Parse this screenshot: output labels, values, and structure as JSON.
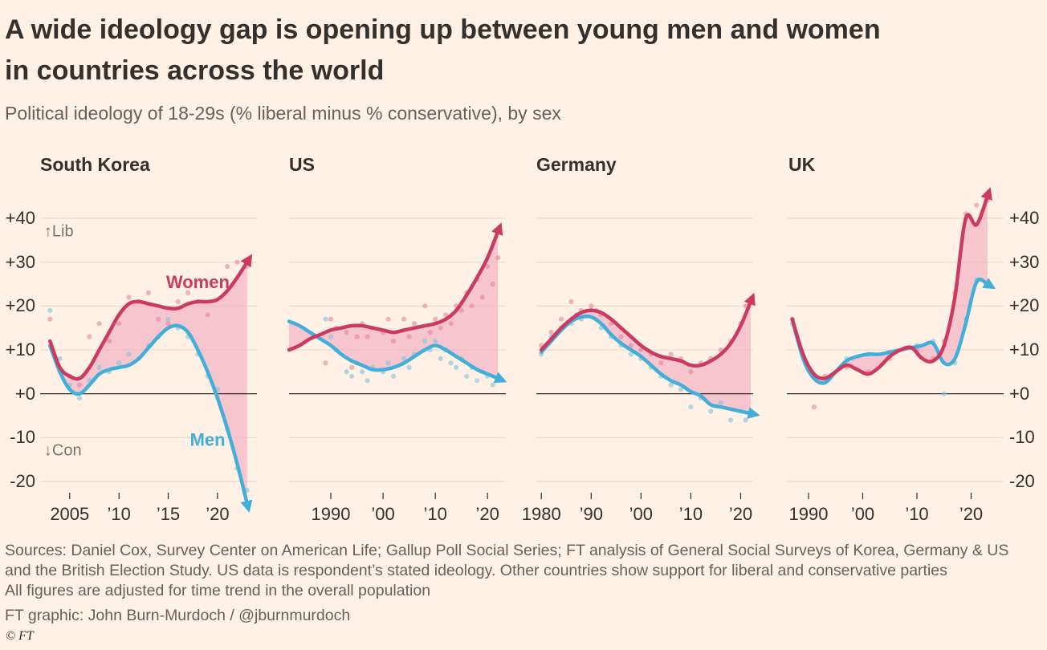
{
  "header": {
    "title_line1": "A wide ideology gap is opening up between young men and women",
    "title_line2": "in countries across the world",
    "subtitle": "Political ideology of 18-29s (% liberal minus % conservative), by sex"
  },
  "footer": {
    "sources_line1": "Sources: Daniel Cox, Survey Center on American Life; Gallup Poll Social Series; FT analysis of General Social Surveys of Korea, Germany & US",
    "sources_line2": "and the British Election Study. US data is respondent’s stated ideology. Other countries show support for liberal and conservative parties",
    "note": "All figures are adjusted for time trend in the overall population",
    "credit": "FT graphic: John Burn-Murdoch / @jburnmurdoch",
    "copyright": "© FT"
  },
  "colors": {
    "background": "#fff1e5",
    "ink": "#33302e",
    "muted": "#66605c",
    "annotation": "#7a746c",
    "grid": "#e6d8c7",
    "zero": "#1f1d1b",
    "women": "#cb3a60",
    "women_dot": "#de7f95",
    "men": "#43aed8",
    "men_dot": "#7ec4de",
    "gap_fill": "#f2a9bd"
  },
  "chart_data": {
    "type": "line",
    "title": "A wide ideology gap is opening up between young men and women in countries across the world",
    "subtitle": "Political ideology of 18-29s (% liberal minus % conservative), by sex",
    "unit": "% liberal minus % conservative",
    "y_axis": {
      "ticks": [
        40,
        30,
        20,
        10,
        0,
        -10,
        -20
      ],
      "labels": [
        "+40",
        "+30",
        "+20",
        "+10",
        "+0",
        "-10",
        "-20"
      ],
      "range": [
        -27,
        48
      ]
    },
    "series": [
      {
        "name": "Women",
        "color_key": "women"
      },
      {
        "name": "Men",
        "color_key": "men"
      }
    ],
    "panels": [
      {
        "title": "South Korea",
        "x_domain": [
          2002,
          2024
        ],
        "x_ticks": [
          2005,
          2010,
          2015,
          2020
        ],
        "x_tick_labels": [
          "2005",
          "’10",
          "’15",
          "’20"
        ],
        "years": [
          2003,
          2004,
          2005,
          2006,
          2007,
          2008,
          2009,
          2010,
          2011,
          2012,
          2013,
          2014,
          2015,
          2016,
          2017,
          2018,
          2019,
          2020,
          2021,
          2022,
          2023
        ],
        "women": [
          12,
          6,
          4,
          3.5,
          6,
          10,
          14,
          18,
          20.5,
          21,
          20.5,
          20,
          19.5,
          19.5,
          20.5,
          21,
          21,
          21.5,
          23.5,
          26.5,
          30
        ],
        "men": [
          11,
          5,
          1,
          0,
          2,
          4.5,
          5.5,
          6,
          6.5,
          8,
          10.5,
          13,
          15,
          15.5,
          14,
          10,
          5,
          -1,
          -8,
          -16,
          -25
        ],
        "dots_women": [
          [
            2003,
            17
          ],
          [
            2004,
            5
          ],
          [
            2005,
            4
          ],
          [
            2006,
            2
          ],
          [
            2007,
            13
          ],
          [
            2008,
            16
          ],
          [
            2009,
            12
          ],
          [
            2010,
            16
          ],
          [
            2011,
            22
          ],
          [
            2012,
            21
          ],
          [
            2013,
            23
          ],
          [
            2014,
            17
          ],
          [
            2015,
            16
          ],
          [
            2016,
            21
          ],
          [
            2017,
            23
          ],
          [
            2018,
            21
          ],
          [
            2019,
            18
          ],
          [
            2021,
            29
          ],
          [
            2022,
            30
          ],
          [
            2023,
            29
          ]
        ],
        "dots_men": [
          [
            2003,
            19
          ],
          [
            2004,
            8
          ],
          [
            2005,
            2
          ],
          [
            2006,
            -1
          ],
          [
            2007,
            3
          ],
          [
            2008,
            6
          ],
          [
            2009,
            5
          ],
          [
            2010,
            7
          ],
          [
            2011,
            9
          ],
          [
            2012,
            8
          ],
          [
            2013,
            11
          ],
          [
            2014,
            13
          ],
          [
            2015,
            17
          ],
          [
            2016,
            15
          ],
          [
            2017,
            13
          ],
          [
            2018,
            9
          ],
          [
            2019,
            4
          ],
          [
            2020,
            1
          ],
          [
            2021,
            -8
          ],
          [
            2022,
            -17
          ],
          [
            2023,
            -22
          ]
        ],
        "annotations": [
          {
            "text": "Women",
            "color_key": "women",
            "x": 2018,
            "y": 25.5,
            "anchor": "middle",
            "bold": true,
            "size": 22
          },
          {
            "text": "Men",
            "color_key": "men",
            "x": 2019,
            "y": -10.5,
            "anchor": "middle",
            "bold": true,
            "size": 22
          },
          {
            "text": "↑Lib",
            "color_key": "annotation",
            "x": 2002.4,
            "y": 37,
            "anchor": "start",
            "bold": false,
            "size": 20
          },
          {
            "text": "↓Con",
            "color_key": "annotation",
            "x": 2002.4,
            "y": -13,
            "anchor": "start",
            "bold": false,
            "size": 20
          }
        ]
      },
      {
        "title": "US",
        "x_domain": [
          1982,
          2023.5
        ],
        "x_ticks": [
          1990,
          2000,
          2010,
          2020
        ],
        "x_tick_labels": [
          "1990",
          "’00",
          "’10",
          "’20"
        ],
        "years": [
          1982,
          1984,
          1986,
          1988,
          1990,
          1992,
          1994,
          1996,
          1998,
          2000,
          2002,
          2004,
          2006,
          2008,
          2010,
          2012,
          2014,
          2016,
          2018,
          2020,
          2022
        ],
        "women": [
          10,
          11,
          12.5,
          13.5,
          14.5,
          15,
          15.5,
          15.5,
          15,
          14.5,
          14,
          14.5,
          15,
          15.5,
          16,
          17,
          19,
          22.5,
          26.5,
          31,
          37
        ],
        "men": [
          16.5,
          15.5,
          14,
          12.5,
          11,
          9,
          7.5,
          6.5,
          5.5,
          5.5,
          6,
          7,
          8.5,
          10,
          11,
          10,
          8.5,
          7,
          5.5,
          4.5,
          3.5
        ],
        "dots_women": [
          [
            1989,
            7
          ],
          [
            1990,
            17
          ],
          [
            1991,
            15
          ],
          [
            1993,
            14
          ],
          [
            1994,
            6
          ],
          [
            1995,
            13
          ],
          [
            1996,
            16
          ],
          [
            1997,
            13
          ],
          [
            1998,
            15
          ],
          [
            2000,
            14
          ],
          [
            2001,
            17
          ],
          [
            2002,
            12
          ],
          [
            2004,
            17
          ],
          [
            2005,
            13
          ],
          [
            2006,
            16
          ],
          [
            2008,
            20
          ],
          [
            2009,
            14
          ],
          [
            2010,
            17
          ],
          [
            2011,
            15
          ],
          [
            2012,
            18
          ],
          [
            2013,
            16
          ],
          [
            2014,
            20
          ],
          [
            2015,
            19
          ],
          [
            2016,
            23
          ],
          [
            2017,
            20
          ],
          [
            2018,
            26
          ],
          [
            2019,
            22
          ],
          [
            2020,
            29
          ],
          [
            2021,
            25
          ],
          [
            2022,
            31
          ]
        ],
        "dots_men": [
          [
            1989,
            17
          ],
          [
            1990,
            13
          ],
          [
            1991,
            10
          ],
          [
            1993,
            5
          ],
          [
            1994,
            4
          ],
          [
            1995,
            7
          ],
          [
            1996,
            5
          ],
          [
            1997,
            3
          ],
          [
            1998,
            6
          ],
          [
            2000,
            5
          ],
          [
            2001,
            7
          ],
          [
            2002,
            4
          ],
          [
            2004,
            8
          ],
          [
            2005,
            6
          ],
          [
            2006,
            9
          ],
          [
            2008,
            12
          ],
          [
            2009,
            10
          ],
          [
            2010,
            12
          ],
          [
            2011,
            8
          ],
          [
            2012,
            10
          ],
          [
            2013,
            7
          ],
          [
            2014,
            6
          ],
          [
            2015,
            8
          ],
          [
            2016,
            4
          ],
          [
            2017,
            6
          ],
          [
            2018,
            3
          ],
          [
            2019,
            5
          ],
          [
            2020,
            4
          ],
          [
            2021,
            2
          ],
          [
            2022,
            4
          ]
        ],
        "annotations": []
      },
      {
        "title": "Germany",
        "x_domain": [
          1979,
          2022.5
        ],
        "x_ticks": [
          1980,
          1990,
          2000,
          2010,
          2020
        ],
        "x_tick_labels": [
          "1980",
          "’90",
          "’00",
          "’10",
          "’20"
        ],
        "years": [
          1980,
          1982,
          1984,
          1986,
          1988,
          1990,
          1992,
          1994,
          1996,
          1998,
          2000,
          2002,
          2004,
          2006,
          2008,
          2010,
          2012,
          2014,
          2016,
          2018,
          2020,
          2022
        ],
        "women": [
          10,
          12.5,
          15,
          17,
          18.5,
          19,
          18.5,
          17,
          15,
          13,
          11,
          9.5,
          8.5,
          8,
          7.5,
          6.5,
          6.5,
          7.5,
          9,
          11.5,
          15.5,
          21
        ],
        "men": [
          9.5,
          12,
          14.5,
          16.5,
          17.5,
          17.5,
          16,
          13.5,
          11.5,
          10,
          8.5,
          6.5,
          4.5,
          3,
          2,
          0.5,
          -0.5,
          -2.5,
          -3,
          -3.5,
          -4,
          -4.5
        ],
        "dots_women": [
          [
            1980,
            11
          ],
          [
            1982,
            14
          ],
          [
            1984,
            17
          ],
          [
            1986,
            21
          ],
          [
            1987,
            18
          ],
          [
            1988,
            19
          ],
          [
            1990,
            20
          ],
          [
            1991,
            19
          ],
          [
            1992,
            18
          ],
          [
            1994,
            16
          ],
          [
            1996,
            13
          ],
          [
            1998,
            11
          ],
          [
            2000,
            10
          ],
          [
            2002,
            9
          ],
          [
            2004,
            7
          ],
          [
            2006,
            9
          ],
          [
            2008,
            8
          ],
          [
            2010,
            5
          ],
          [
            2012,
            7
          ],
          [
            2014,
            8
          ],
          [
            2016,
            10
          ],
          [
            2018,
            12
          ],
          [
            2020,
            16
          ],
          [
            2021,
            20
          ]
        ],
        "dots_men": [
          [
            1980,
            9
          ],
          [
            1982,
            13
          ],
          [
            1984,
            15
          ],
          [
            1986,
            16
          ],
          [
            1988,
            17
          ],
          [
            1990,
            19
          ],
          [
            1992,
            15
          ],
          [
            1994,
            13
          ],
          [
            1996,
            11
          ],
          [
            1998,
            9
          ],
          [
            2000,
            8
          ],
          [
            2002,
            6
          ],
          [
            2004,
            4
          ],
          [
            2006,
            2
          ],
          [
            2008,
            1
          ],
          [
            2010,
            -3
          ],
          [
            2012,
            -1
          ],
          [
            2014,
            -4
          ],
          [
            2016,
            -2
          ],
          [
            2018,
            -6
          ],
          [
            2020,
            -4
          ],
          [
            2021,
            -6
          ]
        ],
        "annotations": []
      },
      {
        "title": "UK",
        "x_domain": [
          1986,
          2026
        ],
        "x_ticks": [
          1990,
          2000,
          2010,
          2020
        ],
        "x_tick_labels": [
          "1990",
          "’00",
          "’10",
          "’20"
        ],
        "years": [
          1987,
          1989,
          1991,
          1993,
          1995,
          1997,
          1999,
          2001,
          2003,
          2005,
          2007,
          2009,
          2011,
          2013,
          2015,
          2017,
          2019,
          2021,
          2023
        ],
        "women": [
          17,
          9,
          4.5,
          3.5,
          5,
          6.5,
          5.5,
          4.5,
          6,
          8.5,
          10,
          10.5,
          8,
          7.5,
          11,
          22,
          40,
          38.5,
          45
        ],
        "men": [
          17,
          8,
          3.5,
          2.5,
          5,
          7.5,
          8.5,
          9,
          9,
          9.5,
          10,
          10.5,
          11,
          11.5,
          7,
          8,
          16,
          25.5,
          25
        ],
        "dots_women": [
          [
            1987,
            17
          ],
          [
            1991,
            -3
          ],
          [
            1993,
            4
          ],
          [
            1997,
            6
          ],
          [
            2001,
            5
          ],
          [
            2005,
            8
          ],
          [
            2010,
            10
          ],
          [
            2013,
            8
          ],
          [
            2015,
            12
          ],
          [
            2017,
            23
          ],
          [
            2019,
            41
          ],
          [
            2021,
            43
          ],
          [
            2023,
            44
          ]
        ],
        "dots_men": [
          [
            1987,
            16
          ],
          [
            1993,
            3
          ],
          [
            1997,
            8
          ],
          [
            2001,
            9
          ],
          [
            2005,
            9
          ],
          [
            2010,
            11
          ],
          [
            2013,
            12
          ],
          [
            2015,
            0
          ],
          [
            2017,
            7
          ],
          [
            2019,
            17
          ],
          [
            2021,
            26
          ],
          [
            2023,
            25
          ]
        ],
        "annotations": []
      }
    ]
  }
}
